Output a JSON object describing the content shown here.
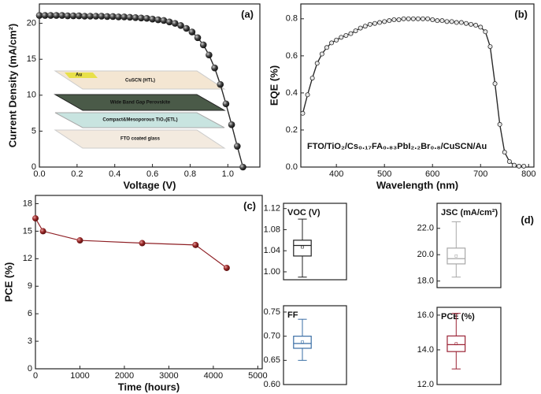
{
  "chart_data": [
    {
      "type": "line",
      "label": "(a)",
      "x_label": "Voltage (V)",
      "y_label": "Current Density (mA/cm²)",
      "x": [
        0,
        0.03,
        0.06,
        0.09,
        0.12,
        0.15,
        0.18,
        0.21,
        0.24,
        0.27,
        0.3,
        0.33,
        0.36,
        0.39,
        0.42,
        0.45,
        0.48,
        0.51,
        0.54,
        0.57,
        0.6,
        0.63,
        0.66,
        0.69,
        0.72,
        0.75,
        0.78,
        0.81,
        0.84,
        0.87,
        0.9,
        0.93,
        0.96,
        0.99,
        1.02,
        1.05,
        1.08
      ],
      "values": [
        21.1,
        21.1,
        21.1,
        21.1,
        21.1,
        21.05,
        21.05,
        21.05,
        21,
        21,
        21,
        21,
        20.95,
        20.95,
        20.9,
        20.9,
        20.85,
        20.8,
        20.75,
        20.7,
        20.6,
        20.5,
        20.4,
        20.2,
        20,
        19.7,
        19.3,
        18.8,
        18,
        17,
        15.6,
        13.8,
        11.5,
        8.8,
        5.9,
        2.9,
        0
      ],
      "color": "#2a2a2a",
      "marker": "sphere",
      "xlim": [
        0,
        1.17
      ],
      "xticks": [
        {
          "value": 0,
          "label": "0.0"
        },
        0.2,
        0.4,
        0.6,
        0.8,
        {
          "value": 1,
          "label": "1.0"
        }
      ],
      "ylim": [
        0,
        22.7
      ],
      "yticks": [
        0,
        5,
        10,
        15,
        20
      ],
      "annotations": [
        "Au",
        "CuSCN (HTL)",
        "Wide Band Gap Perovskite",
        "Compact&Mesoporous TiO₂(ETL)",
        "FTO coated glass"
      ]
    },
    {
      "type": "line",
      "label": "(b)",
      "x_label": "Wavelength (nm)",
      "y_label": "EQE (%)",
      "x": [
        330,
        340,
        350,
        360,
        370,
        380,
        390,
        400,
        410,
        420,
        430,
        440,
        450,
        460,
        470,
        480,
        490,
        500,
        510,
        520,
        530,
        540,
        550,
        560,
        570,
        580,
        590,
        600,
        610,
        620,
        630,
        640,
        650,
        660,
        670,
        680,
        690,
        700,
        710,
        720,
        730,
        740,
        750,
        760,
        770,
        780,
        790
      ],
      "values": [
        0.29,
        0.39,
        0.48,
        0.56,
        0.61,
        0.645,
        0.67,
        0.685,
        0.7,
        0.71,
        0.72,
        0.735,
        0.75,
        0.76,
        0.77,
        0.775,
        0.78,
        0.785,
        0.79,
        0.795,
        0.795,
        0.8,
        0.8,
        0.8,
        0.8,
        0.8,
        0.8,
        0.795,
        0.79,
        0.79,
        0.785,
        0.785,
        0.78,
        0.78,
        0.775,
        0.77,
        0.765,
        0.755,
        0.73,
        0.65,
        0.45,
        0.23,
        0.08,
        0.03,
        0.01,
        0.005,
        0.005
      ],
      "color": "#2a2a2a",
      "marker": "open",
      "xlim": [
        326,
        811
      ],
      "xticks": [
        400,
        500,
        600,
        700,
        800
      ],
      "ylim": [
        0,
        0.88
      ],
      "yticks": [
        {
          "value": 0,
          "label": "0.0"
        },
        0.2,
        0.4,
        0.6,
        0.8
      ],
      "annotations": [
        "FTO/TiO₂/Cs₀.₁₇FA₀.₈₃PbI₂.₂Br₀.₈/CuSCN/Au"
      ]
    },
    {
      "type": "line",
      "label": "(c)",
      "x_label": "Time (hours)",
      "y_label": "PCE (%)",
      "x": [
        0,
        170,
        1000,
        2400,
        3600,
        4300
      ],
      "values": [
        16.4,
        15.0,
        14.0,
        13.7,
        13.5,
        11.0
      ],
      "color": "#8e1f24",
      "marker": "sphere",
      "xlim": [
        0,
        5100
      ],
      "xticks": [
        0,
        1000,
        2000,
        3000,
        4000,
        5000
      ],
      "ylim": [
        0,
        18.9
      ],
      "yticks": [
        0,
        3,
        6,
        9,
        12,
        15,
        18
      ]
    },
    {
      "type": "box",
      "title": "VOC (V)",
      "color": "#222222",
      "box": {
        "min": 0.99,
        "q1": 1.03,
        "median": 1.05,
        "q3": 1.06,
        "max": 1.1,
        "mean": 1.047
      },
      "ylim": [
        0.985,
        1.13
      ],
      "yticks": [
        {
          "value": 1,
          "label": "1.00"
        },
        {
          "value": 1.04,
          "label": "1.04"
        },
        {
          "value": 1.08,
          "label": "1.08"
        },
        {
          "value": 1.12,
          "label": "1.12"
        }
      ]
    },
    {
      "type": "box",
      "title": "JSC (mA/cm²)",
      "label": "(d)",
      "color": "#a8a8a8",
      "box": {
        "min": 18.3,
        "q1": 19.3,
        "median": 19.7,
        "q3": 20.5,
        "max": 22.5,
        "mean": 19.9
      },
      "ylim": [
        17.5,
        23.9
      ],
      "yticks": [
        {
          "value": 18,
          "label": "18.0"
        },
        {
          "value": 20,
          "label": "20.0"
        },
        {
          "value": 22,
          "label": "22.0"
        }
      ]
    },
    {
      "type": "box",
      "title": "FF",
      "color": "#3a6ea5",
      "box": {
        "min": 0.65,
        "q1": 0.675,
        "median": 0.685,
        "q3": 0.7,
        "max": 0.735,
        "mean": 0.688
      },
      "ylim": [
        0.6,
        0.763
      ],
      "yticks": [
        {
          "value": 0.6,
          "label": "0.60"
        },
        0.65,
        {
          "value": 0.7,
          "label": "0.70"
        },
        0.75
      ]
    },
    {
      "type": "box",
      "title": "PCE (%)",
      "color": "#9b2335",
      "box": {
        "min": 12.9,
        "q1": 13.9,
        "median": 14.3,
        "q3": 14.8,
        "max": 16.1,
        "mean": 14.35
      },
      "ylim": [
        12,
        16.45
      ],
      "yticks": [
        {
          "value": 12,
          "label": "12.0"
        },
        {
          "value": 14,
          "label": "14.0"
        },
        {
          "value": 16,
          "label": "16.0"
        }
      ]
    }
  ]
}
